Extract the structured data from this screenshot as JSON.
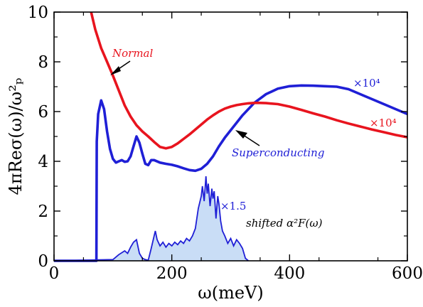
{
  "chart_data": {
    "type": "line",
    "xlabel": "ω(meV)",
    "ylabel": "4πReσ(ω)/ω²ₚ",
    "xlim": [
      0,
      600
    ],
    "ylim": [
      0,
      10
    ],
    "x_ticks": [
      "0",
      "200",
      "400",
      "600"
    ],
    "y_ticks": [
      "0",
      "2",
      "4",
      "6",
      "8",
      "10"
    ],
    "grid": false,
    "legend": "none",
    "series": [
      {
        "name": "Normal",
        "color": "#e8141e",
        "multiplier_label": "×10⁴",
        "x": [
          63,
          70,
          80,
          90,
          100,
          110,
          120,
          130,
          140,
          150,
          160,
          170,
          180,
          190,
          200,
          210,
          220,
          230,
          240,
          250,
          260,
          270,
          280,
          290,
          300,
          310,
          320,
          330,
          340,
          350,
          360,
          380,
          400,
          420,
          440,
          460,
          480,
          500,
          520,
          540,
          560,
          580,
          600
        ],
        "y": [
          10.0,
          9.3,
          8.55,
          8.0,
          7.45,
          6.85,
          6.25,
          5.8,
          5.45,
          5.2,
          5.0,
          4.78,
          4.58,
          4.52,
          4.58,
          4.72,
          4.9,
          5.08,
          5.28,
          5.48,
          5.68,
          5.85,
          6.0,
          6.12,
          6.2,
          6.26,
          6.3,
          6.33,
          6.35,
          6.35,
          6.34,
          6.3,
          6.2,
          6.07,
          5.93,
          5.8,
          5.65,
          5.52,
          5.4,
          5.28,
          5.17,
          5.06,
          4.97
        ]
      },
      {
        "name": "Superconducting",
        "color": "#1f1fd6",
        "multiplier_label": "×10⁴",
        "x": [
          0,
          50,
          72,
          72.5,
          75,
          80,
          85,
          90,
          95,
          100,
          105,
          110,
          115,
          120,
          125,
          130,
          135,
          140,
          145,
          150,
          155,
          160,
          165,
          170,
          180,
          190,
          200,
          210,
          220,
          230,
          240,
          250,
          260,
          270,
          280,
          290,
          300,
          310,
          320,
          330,
          340,
          360,
          380,
          400,
          420,
          440,
          460,
          480,
          500,
          520,
          540,
          560,
          580,
          600
        ],
        "y": [
          0,
          0,
          0,
          4.8,
          5.9,
          6.45,
          6.1,
          5.2,
          4.5,
          4.1,
          3.95,
          4.0,
          4.05,
          3.98,
          4.0,
          4.2,
          4.6,
          5.0,
          4.75,
          4.3,
          3.9,
          3.85,
          4.05,
          4.05,
          3.95,
          3.9,
          3.86,
          3.8,
          3.72,
          3.65,
          3.62,
          3.7,
          3.9,
          4.2,
          4.6,
          4.95,
          5.25,
          5.55,
          5.85,
          6.1,
          6.35,
          6.7,
          6.92,
          7.02,
          7.05,
          7.04,
          7.02,
          7.0,
          6.9,
          6.7,
          6.5,
          6.3,
          6.1,
          5.9
        ]
      },
      {
        "name": "shifted α²F(ω)",
        "color": "#1f1fd6",
        "fill": "#c9ddf6",
        "multiplier_label": "×1.5",
        "x": [
          0,
          100,
          110,
          120,
          125,
          130,
          135,
          140,
          145,
          150,
          155,
          160,
          165,
          170,
          172,
          175,
          180,
          185,
          190,
          195,
          200,
          205,
          210,
          215,
          220,
          225,
          230,
          235,
          240,
          245,
          250,
          252,
          255,
          258,
          260,
          262,
          265,
          268,
          270,
          272,
          275,
          278,
          280,
          283,
          286,
          290,
          295,
          300,
          305,
          310,
          315,
          320,
          325,
          330
        ],
        "y": [
          0,
          0.05,
          0.25,
          0.4,
          0.3,
          0.55,
          0.75,
          0.85,
          0.3,
          0.1,
          0.05,
          0.02,
          0.5,
          1.0,
          1.2,
          0.85,
          0.6,
          0.75,
          0.55,
          0.7,
          0.6,
          0.75,
          0.65,
          0.8,
          0.7,
          0.9,
          0.8,
          1.0,
          1.3,
          2.1,
          2.6,
          3.0,
          2.4,
          3.4,
          2.7,
          3.1,
          2.2,
          2.9,
          2.5,
          2.8,
          1.7,
          2.6,
          2.3,
          1.6,
          1.2,
          1.0,
          0.7,
          0.9,
          0.6,
          0.85,
          0.7,
          0.5,
          0.1,
          0.0
        ]
      }
    ],
    "annotations": [
      "Normal",
      "Superconducting",
      "×10⁴",
      "×10⁴",
      "×1.5",
      "shifted α²F(ω)"
    ]
  }
}
